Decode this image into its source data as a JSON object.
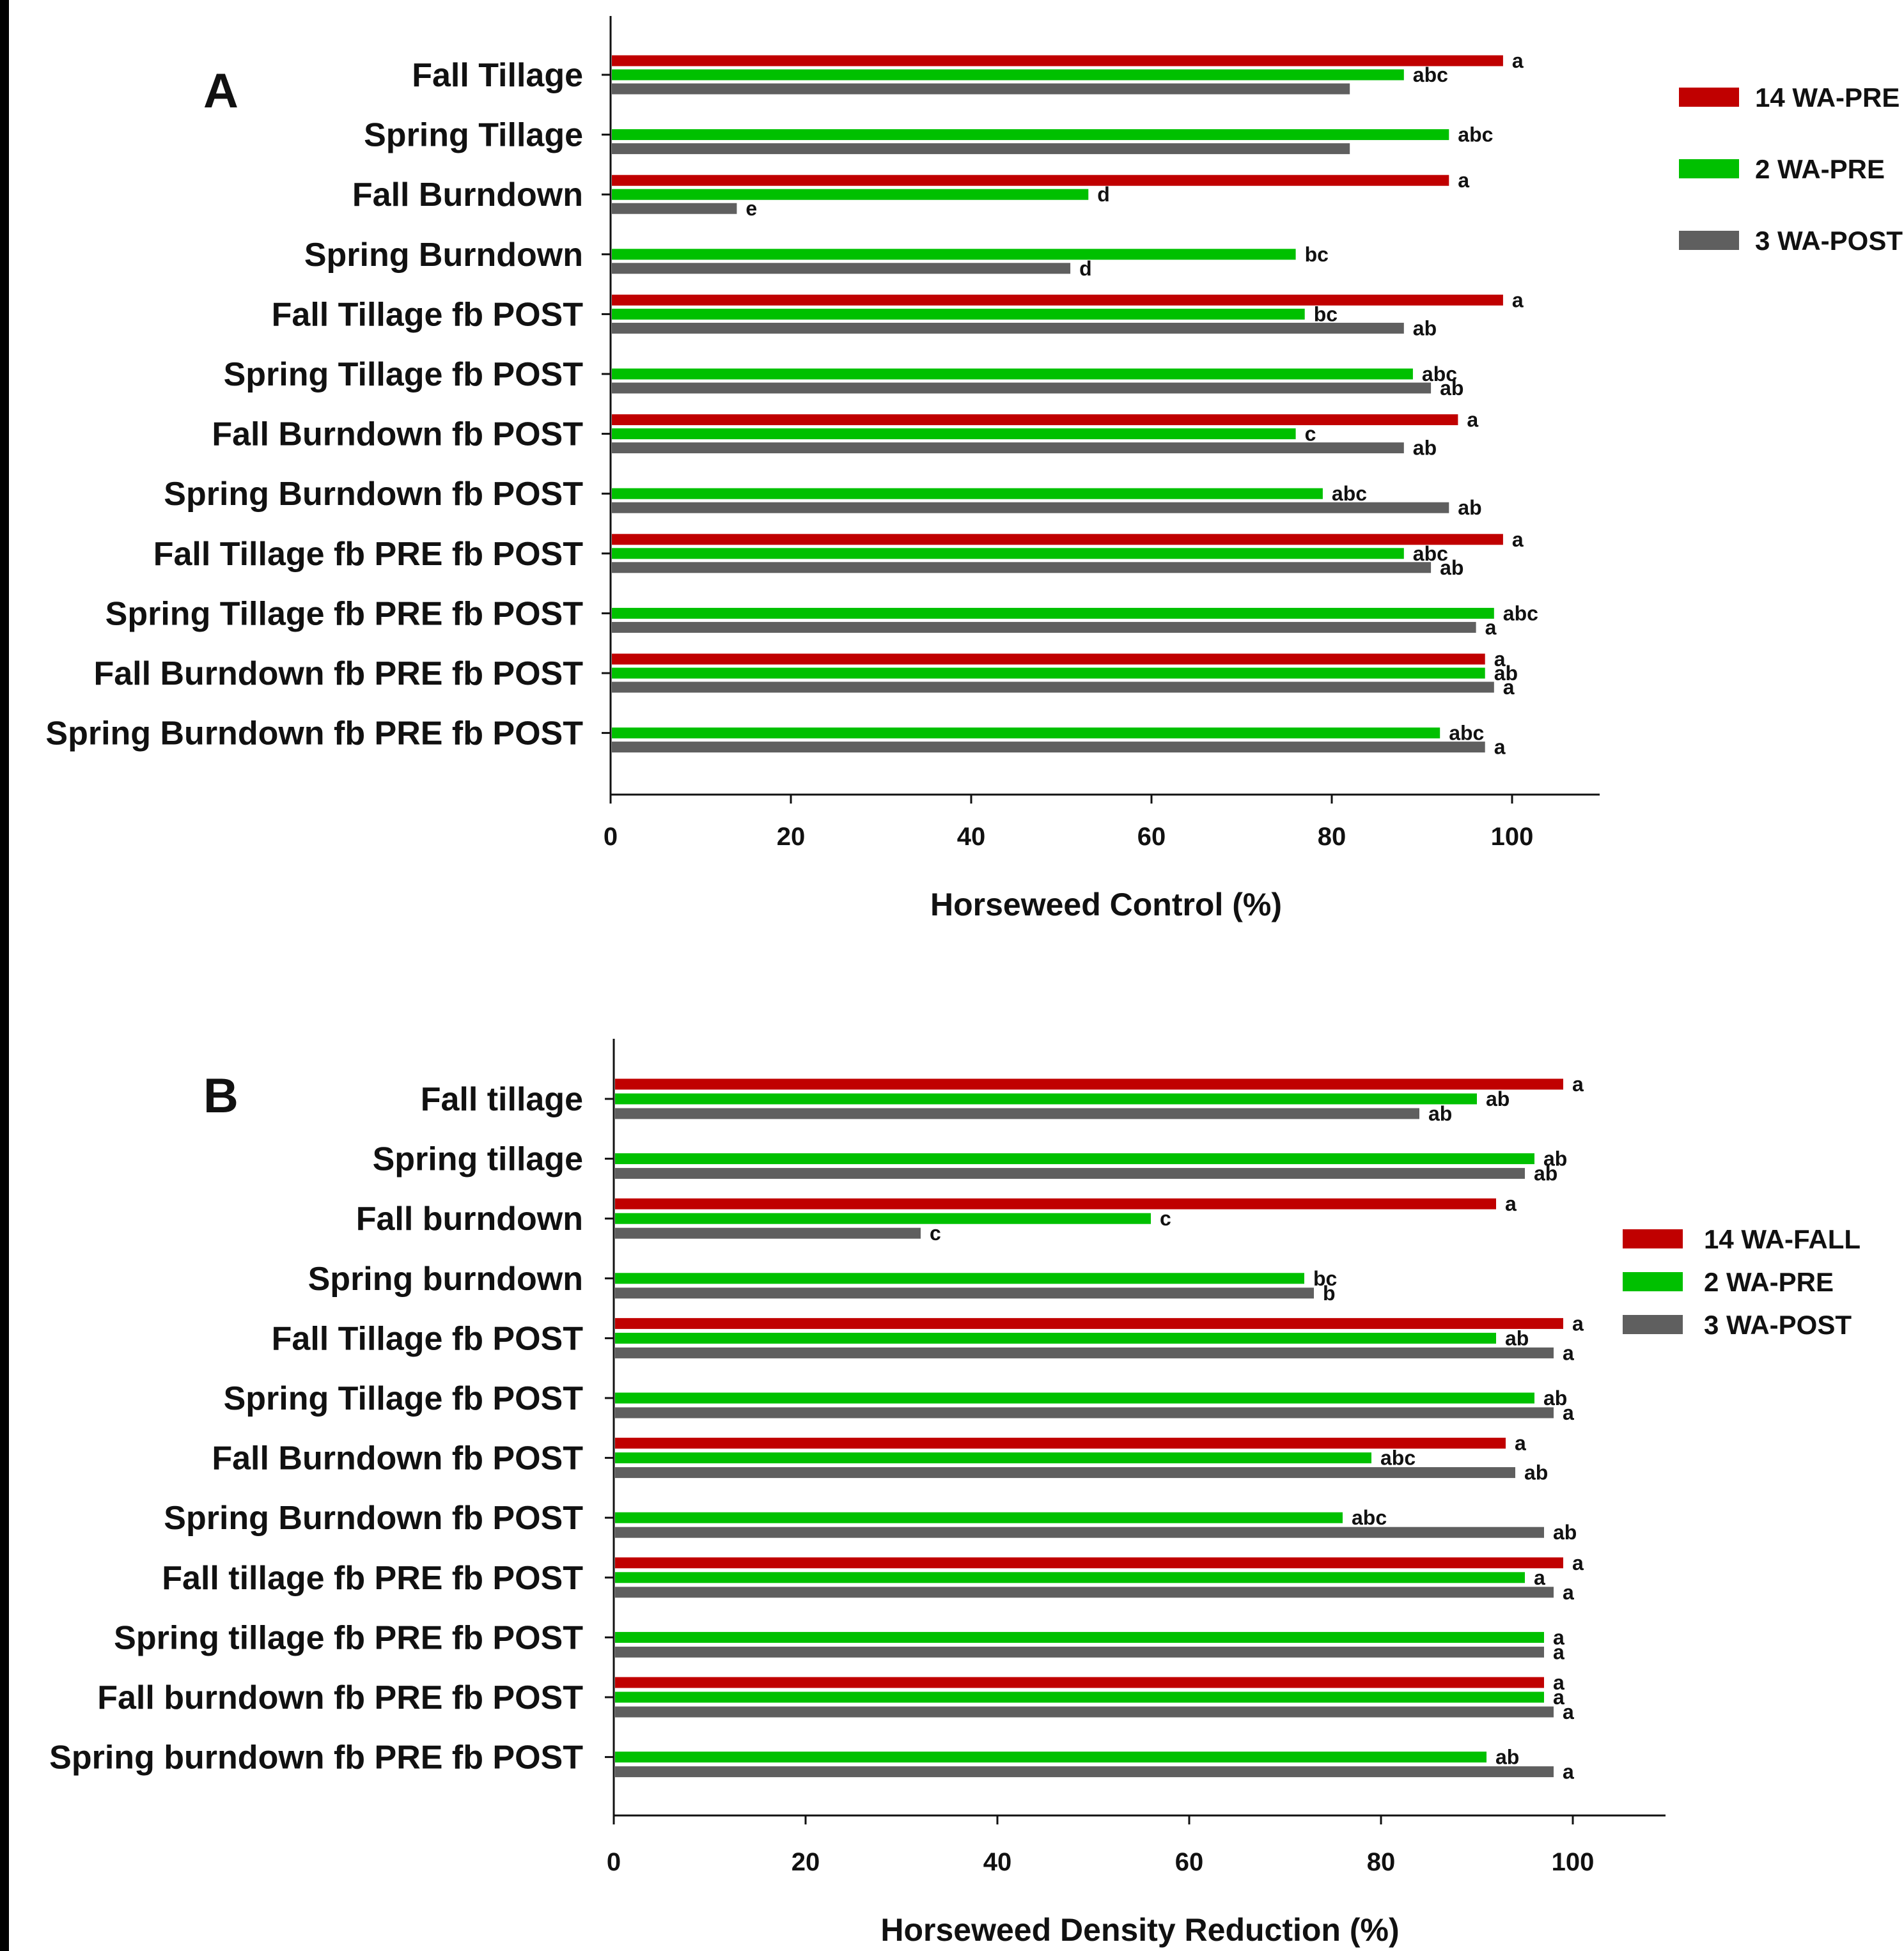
{
  "chart_data": [
    {
      "type": "bar",
      "orientation": "horizontal",
      "panel_label": "A",
      "xlabel": "Horseweed Control (%)",
      "xlim": [
        0,
        110
      ],
      "xticks": [
        0,
        20,
        40,
        60,
        80,
        100
      ],
      "grid": false,
      "legend_position": "top-right",
      "categories": [
        "Fall Tillage",
        "Spring Tillage",
        "Fall Burndown",
        "Spring Burndown",
        "Fall Tillage fb POST",
        "Spring Tillage fb POST",
        "Fall Burndown fb POST",
        "Spring Burndown fb POST",
        "Fall Tillage fb PRE fb POST",
        "Spring Tillage fb PRE fb POST",
        "Fall Burndown fb PRE fb POST",
        "Spring Burndown fb PRE fb POST"
      ],
      "series": [
        {
          "name": "14 WA-PRE",
          "color": "#c00000",
          "values": [
            99,
            null,
            93,
            null,
            99,
            null,
            94,
            null,
            99,
            null,
            97,
            null
          ],
          "labels": [
            "a",
            "",
            "a",
            "",
            "a",
            "",
            "a",
            "",
            "a",
            "",
            "a",
            ""
          ]
        },
        {
          "name": "2 WA-PRE",
          "color": "#00c000",
          "values": [
            88,
            93,
            53,
            76,
            77,
            89,
            76,
            79,
            88,
            98,
            97,
            92
          ],
          "labels": [
            "abc",
            "abc",
            "d",
            "bc",
            "bc",
            "abc",
            "c",
            "abc",
            "abc",
            "abc",
            "ab",
            "abc"
          ]
        },
        {
          "name": "3 WA-POST",
          "color": "#5f5f5f",
          "values": [
            82,
            82,
            14,
            51,
            88,
            91,
            88,
            93,
            91,
            96,
            98,
            97
          ],
          "labels": [
            "",
            "",
            "e",
            "d",
            "ab",
            "ab",
            "ab",
            "ab",
            "ab",
            "a",
            "a",
            "a"
          ]
        }
      ]
    },
    {
      "type": "bar",
      "orientation": "horizontal",
      "panel_label": "B",
      "xlabel": "Horseweed Density Reduction (%)",
      "xlim": [
        0,
        110
      ],
      "xticks": [
        0,
        20,
        40,
        60,
        80,
        100
      ],
      "grid": false,
      "legend_position": "right",
      "categories": [
        "Fall tillage",
        "Spring tillage",
        "Fall burndown",
        "Spring burndown",
        "Fall Tillage fb POST",
        "Spring Tillage fb POST",
        "Fall Burndown fb POST",
        "Spring Burndown fb POST",
        "Fall tillage fb PRE fb POST",
        "Spring tillage fb PRE fb POST",
        "Fall burndown fb PRE fb POST",
        "Spring burndown fb PRE fb POST"
      ],
      "series": [
        {
          "name": "14 WA-FALL",
          "color": "#c00000",
          "values": [
            99,
            null,
            92,
            null,
            99,
            null,
            93,
            null,
            99,
            null,
            97,
            null
          ],
          "labels": [
            "a",
            "",
            "a",
            "",
            "a",
            "",
            "a",
            "",
            "a",
            "",
            "a",
            ""
          ]
        },
        {
          "name": "2 WA-PRE",
          "color": "#00c000",
          "values": [
            90,
            96,
            56,
            72,
            92,
            96,
            79,
            76,
            95,
            97,
            97,
            91
          ],
          "labels": [
            "ab",
            "ab",
            "c",
            "bc",
            "ab",
            "ab",
            "abc",
            "abc",
            "a",
            "a",
            "a",
            "ab"
          ]
        },
        {
          "name": "3 WA-POST",
          "color": "#5f5f5f",
          "values": [
            84,
            95,
            32,
            73,
            98,
            98,
            94,
            97,
            98,
            97,
            98,
            98
          ],
          "labels": [
            "ab",
            "ab",
            "c",
            "b",
            "a",
            "a",
            "ab",
            "ab",
            "a",
            "a",
            "a",
            "a"
          ]
        }
      ]
    }
  ]
}
